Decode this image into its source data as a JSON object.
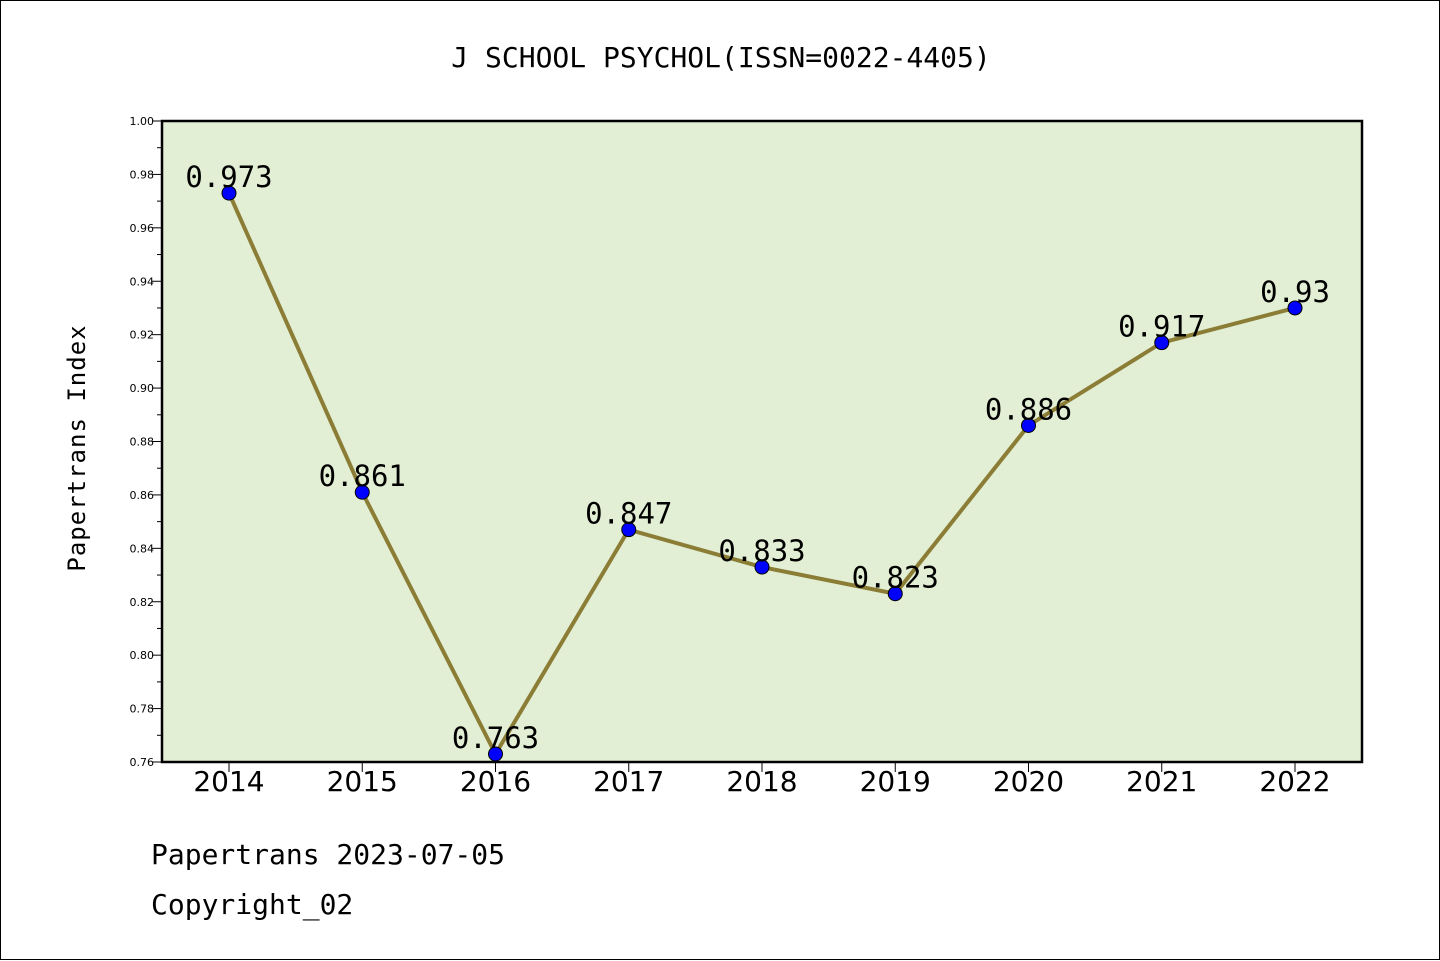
{
  "chart_data": {
    "type": "line",
    "title": "J SCHOOL PSYCHOL(ISSN=0022-4405)",
    "xlabel": "",
    "ylabel": "Papertrans Index",
    "categories": [
      "2014",
      "2015",
      "2016",
      "2017",
      "2018",
      "2019",
      "2020",
      "2021",
      "2022"
    ],
    "series": [
      {
        "values": [
          0.973,
          0.861,
          0.763,
          0.847,
          0.833,
          0.823,
          0.886,
          0.917,
          0.93
        ],
        "labels": [
          "0.973",
          "0.861",
          "0.763",
          "0.847",
          "0.833",
          "0.823",
          "0.886",
          "0.917",
          "0.93"
        ]
      }
    ],
    "ylim": [
      0.76,
      1.0
    ],
    "yticks": [
      "0.76",
      "0.78",
      "0.80",
      "0.82",
      "0.84",
      "0.86",
      "0.88",
      "0.90",
      "0.92",
      "0.94",
      "0.96",
      "0.98",
      "1.00"
    ],
    "grid": false,
    "colors": {
      "plot_background": "#e2efd4",
      "line": "#8b7d35",
      "marker": "#0000ff"
    }
  },
  "footer": {
    "line1": "Papertrans 2023-07-05",
    "line2": "Copyright_02"
  }
}
